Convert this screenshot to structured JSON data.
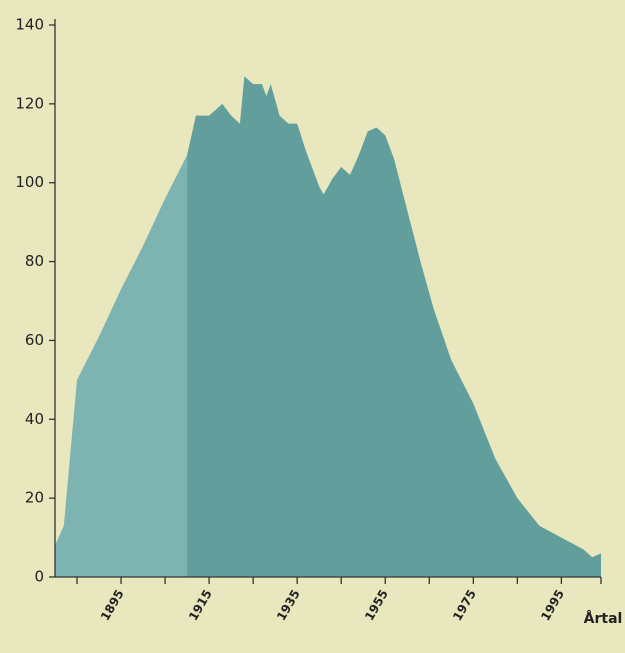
{
  "chart_data": {
    "type": "area",
    "x_label": "Årtal",
    "x": [
      1880,
      1882,
      1885,
      1890,
      1895,
      1900,
      1905,
      1910,
      1912,
      1915,
      1918,
      1920,
      1922,
      1923,
      1925,
      1927,
      1928,
      1929,
      1931,
      1933,
      1935,
      1937,
      1940,
      1941,
      1943,
      1945,
      1947,
      1949,
      1951,
      1953,
      1955,
      1957,
      1960,
      1963,
      1966,
      1970,
      1975,
      1980,
      1985,
      1990,
      1995,
      2000,
      2002,
      2004
    ],
    "values": [
      8,
      13,
      50,
      61,
      73,
      84,
      96,
      107,
      117,
      117,
      120,
      117,
      115,
      127,
      125,
      125,
      122,
      125,
      117,
      115,
      115,
      108,
      99,
      97,
      101,
      104,
      102,
      107,
      113,
      114,
      112,
      106,
      93,
      80,
      68,
      55,
      44,
      30,
      20,
      13,
      10,
      7,
      5,
      6
    ],
    "colors": [
      "#7db3b0",
      "#619e9c"
    ],
    "shade_from": 1910,
    "xlim": [
      1880,
      2004
    ],
    "xticks": [
      1895,
      1915,
      1935,
      1955,
      1975,
      1995
    ],
    "xminorticks": [
      1885,
      1905,
      1925,
      1945,
      1965,
      1985,
      2004
    ],
    "ylim": [
      0,
      140
    ],
    "yticks": [
      0,
      20,
      40,
      60,
      80,
      100,
      120,
      140
    ]
  }
}
